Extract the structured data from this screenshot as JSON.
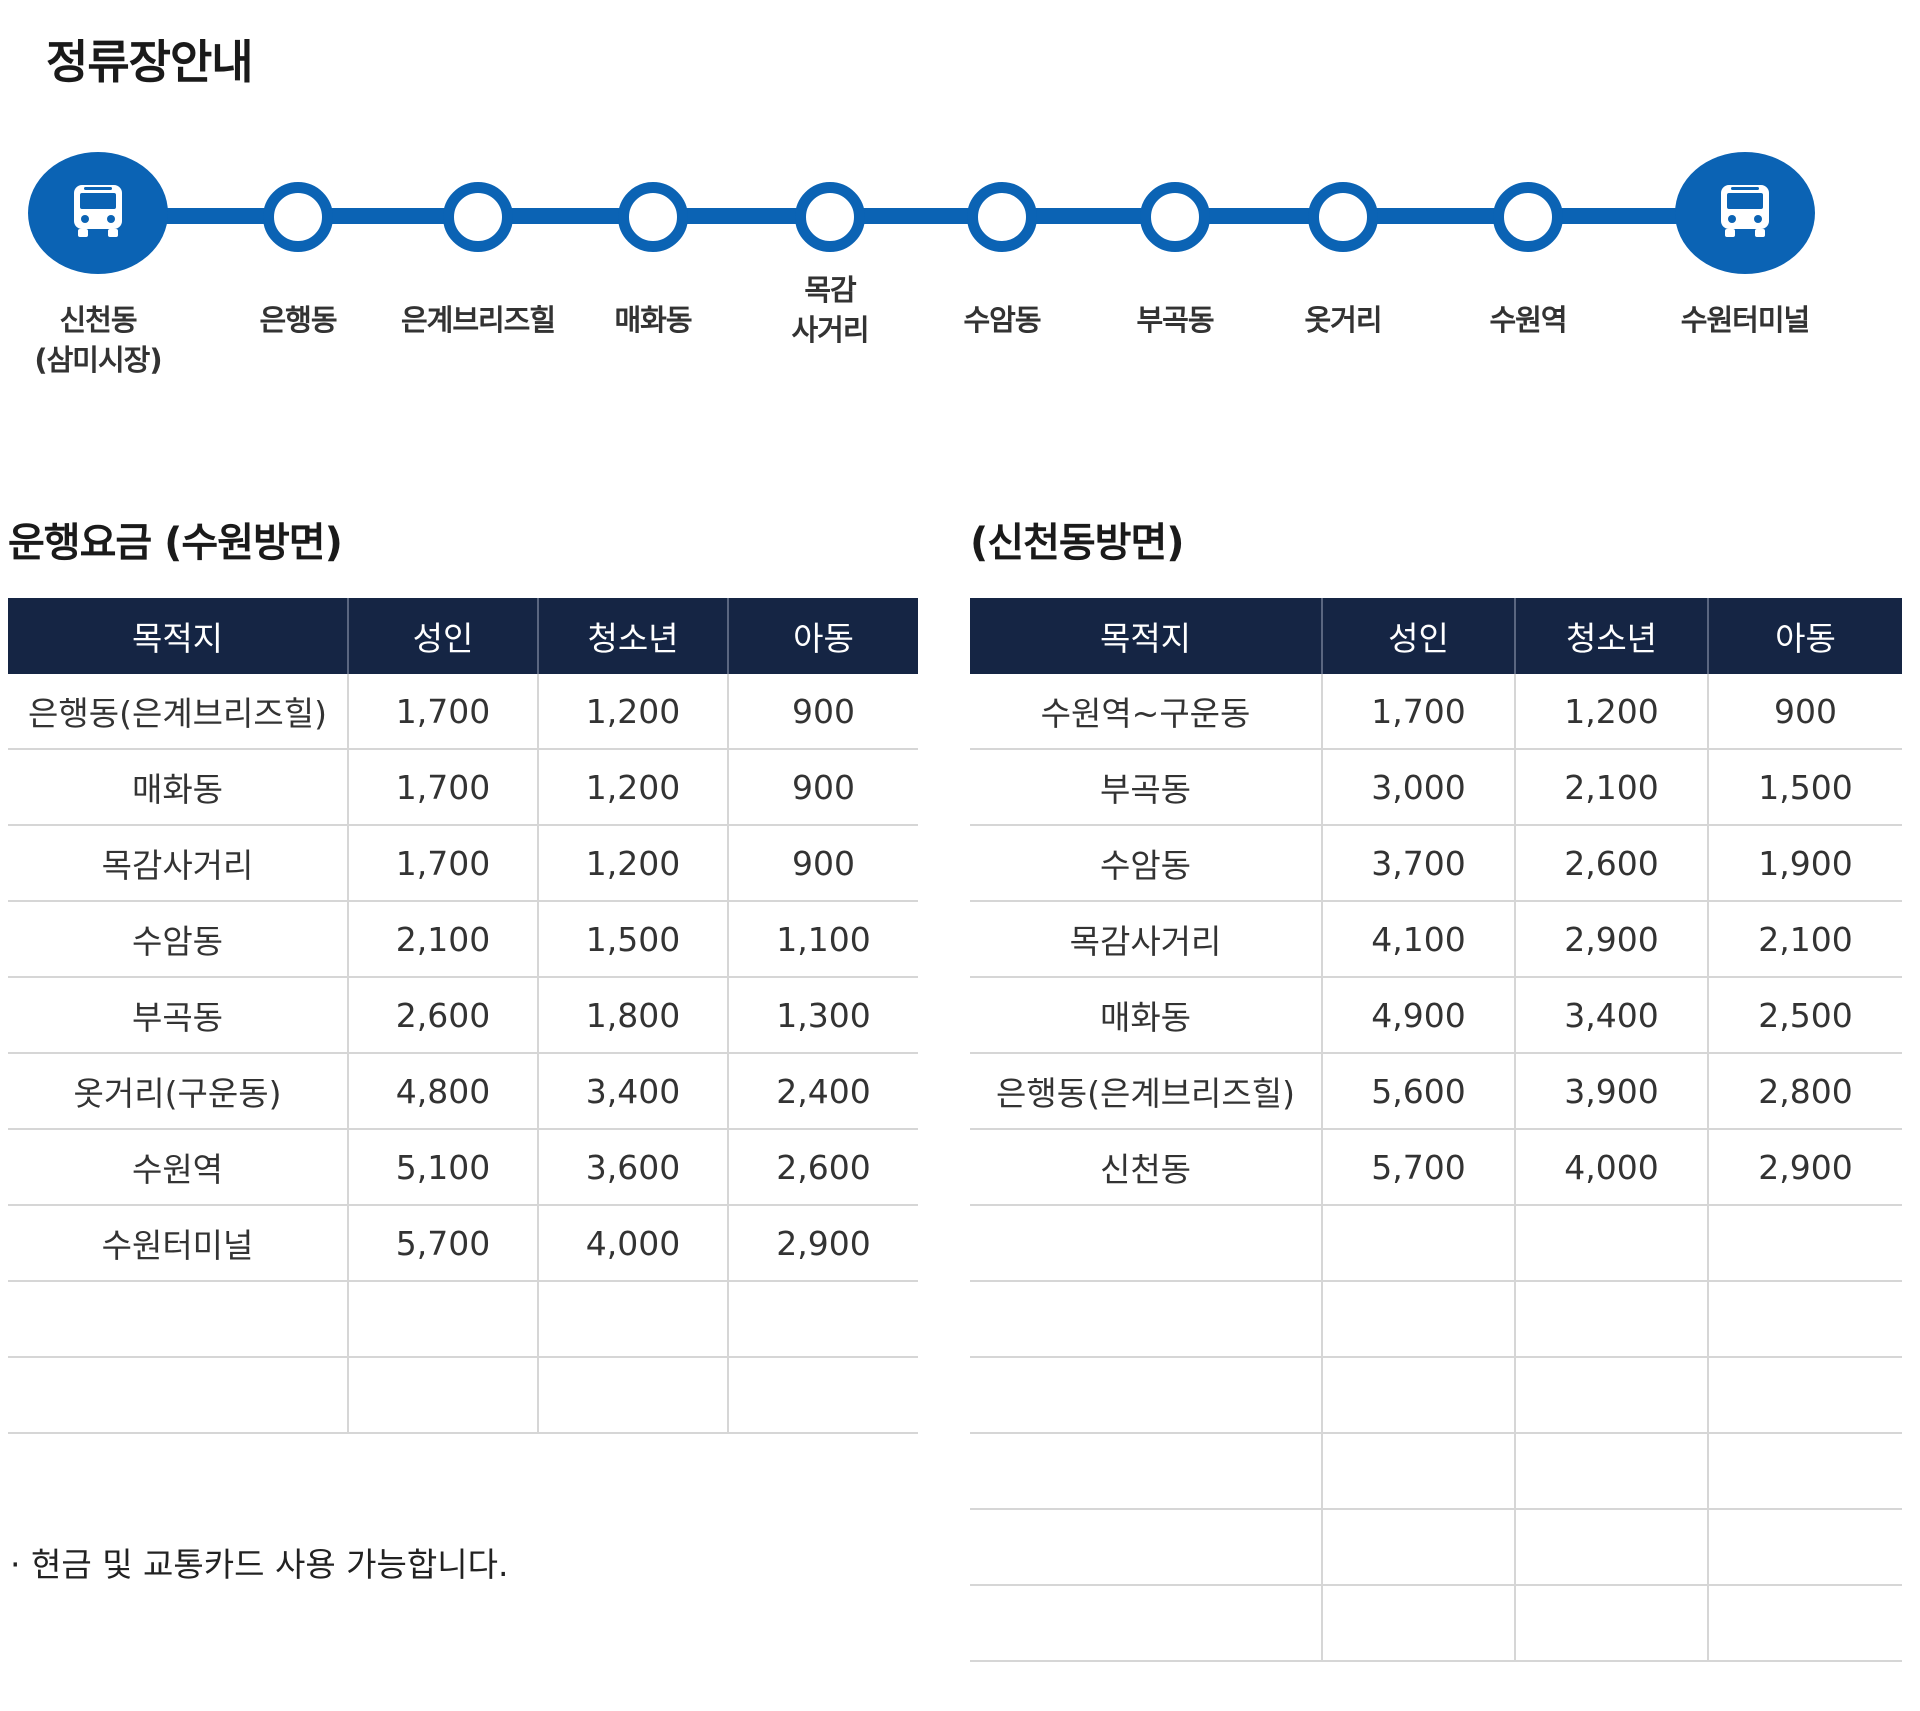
{
  "page_title": "정류장안내",
  "route": {
    "stops": [
      {
        "label": "신천동\n(삼미시장)",
        "terminal": true,
        "icon": "bus-icon"
      },
      {
        "label": "은행동",
        "terminal": false
      },
      {
        "label": "은계브리즈힐",
        "terminal": false
      },
      {
        "label": "매화동",
        "terminal": false
      },
      {
        "label": "목감\n사거리",
        "terminal": false
      },
      {
        "label": "수암동",
        "terminal": false
      },
      {
        "label": "부곡동",
        "terminal": false
      },
      {
        "label": "옷거리",
        "terminal": false
      },
      {
        "label": "수원역",
        "terminal": false
      },
      {
        "label": "수원터미널",
        "terminal": true,
        "icon": "bus-icon"
      }
    ],
    "line_color": "#0b63b4"
  },
  "fares_suwon": {
    "title": "운행요금 (수원방면)",
    "headers": [
      "목적지",
      "성인",
      "청소년",
      "아동"
    ],
    "rows": [
      [
        "은행동(은계브리즈힐)",
        "1,700",
        "1,200",
        "900"
      ],
      [
        "매화동",
        "1,700",
        "1,200",
        "900"
      ],
      [
        "목감사거리",
        "1,700",
        "1,200",
        "900"
      ],
      [
        "수암동",
        "2,100",
        "1,500",
        "1,100"
      ],
      [
        "부곡동",
        "2,600",
        "1,800",
        "1,300"
      ],
      [
        "옷거리(구운동)",
        "4,800",
        "3,400",
        "2,400"
      ],
      [
        "수원역",
        "5,100",
        "3,600",
        "2,600"
      ],
      [
        "수원터미널",
        "5,700",
        "4,000",
        "2,900"
      ],
      [
        "",
        "",
        "",
        ""
      ],
      [
        "",
        "",
        "",
        ""
      ]
    ]
  },
  "fares_sincheon": {
    "title": "(신천동방면)",
    "headers": [
      "목적지",
      "성인",
      "청소년",
      "아동"
    ],
    "rows": [
      [
        "수원역~구운동",
        "1,700",
        "1,200",
        "900"
      ],
      [
        "부곡동",
        "3,000",
        "2,100",
        "1,500"
      ],
      [
        "수암동",
        "3,700",
        "2,600",
        "1,900"
      ],
      [
        "목감사거리",
        "4,100",
        "2,900",
        "2,100"
      ],
      [
        "매화동",
        "4,900",
        "3,400",
        "2,500"
      ],
      [
        "은행동(은계브리즈힐)",
        "5,600",
        "3,900",
        "2,800"
      ],
      [
        "신천동",
        "5,700",
        "4,000",
        "2,900"
      ],
      [
        "",
        "",
        "",
        ""
      ],
      [
        "",
        "",
        "",
        ""
      ],
      [
        "",
        "",
        "",
        ""
      ],
      [
        "",
        "",
        "",
        ""
      ],
      [
        "",
        "",
        "",
        ""
      ],
      [
        "",
        "",
        "",
        ""
      ]
    ]
  },
  "note": "· 현금 및 교통카드 사용 가능합니다.",
  "colors": {
    "header_bg": "#152544",
    "accent": "#0b63b4"
  }
}
